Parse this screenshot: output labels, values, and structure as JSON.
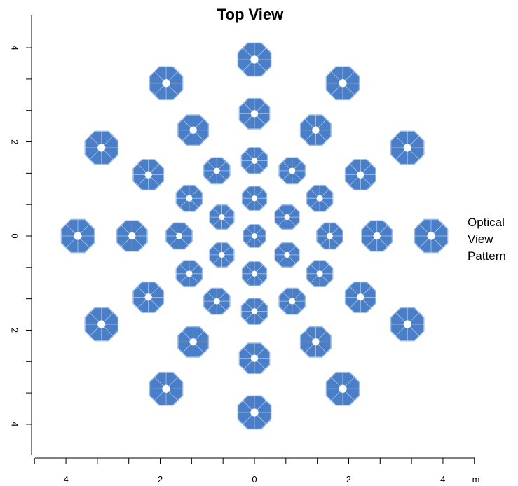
{
  "title": "Top View",
  "side_label": [
    "Optical",
    "View",
    "Pattern"
  ],
  "x_axis": {
    "unit_label": "m",
    "tick_labels": [
      {
        "value": -4,
        "text": "4"
      },
      {
        "value": -2,
        "text": "2"
      },
      {
        "value": 0,
        "text": "0"
      },
      {
        "value": 2,
        "text": "2"
      },
      {
        "value": 4,
        "text": "4"
      }
    ]
  },
  "y_axis": {
    "tick_labels": [
      {
        "value": 4,
        "text": "4"
      },
      {
        "value": 2,
        "text": "2"
      },
      {
        "value": 0,
        "text": "0"
      },
      {
        "value": -2,
        "text": "2"
      },
      {
        "value": -4,
        "text": "4"
      }
    ]
  },
  "colors": {
    "element_fill": "#4a7fc8",
    "element_edge": "#9bbbe6",
    "element_spoke": "#ffffff"
  },
  "elements": {
    "shape": "octagon",
    "rings": [
      {
        "radius_m": 0,
        "count": 1,
        "start_angle_deg": 90,
        "size_m": 0.26
      },
      {
        "radius_m": 0.8,
        "count": 6,
        "start_angle_deg": 90,
        "size_m": 0.28
      },
      {
        "radius_m": 1.6,
        "count": 12,
        "start_angle_deg": 90,
        "size_m": 0.3
      },
      {
        "radius_m": 2.6,
        "count": 12,
        "start_angle_deg": 90,
        "size_m": 0.35
      },
      {
        "radius_m": 3.75,
        "count": 12,
        "start_angle_deg": 90,
        "size_m": 0.38
      }
    ]
  }
}
